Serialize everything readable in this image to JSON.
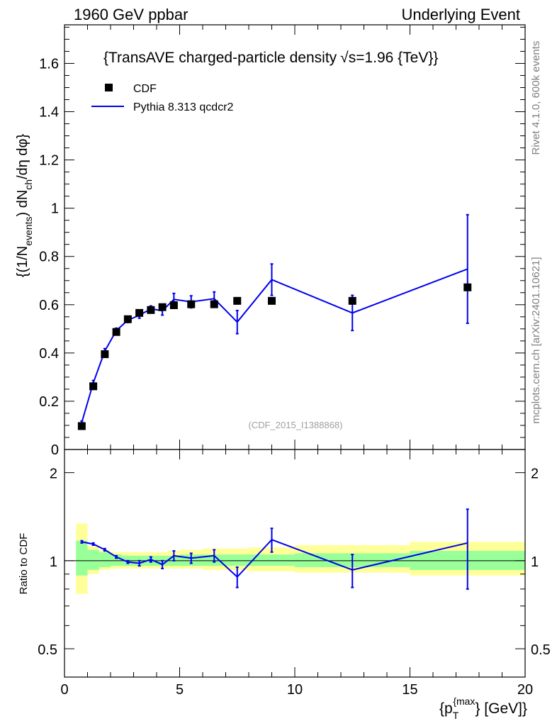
{
  "header": {
    "left": "1960 GeV ppbar",
    "right": "Underlying Event"
  },
  "plot_title": "{TransAVE charged-particle density",
  "plot_title_sqrt": "√s=1.96 {TeV}}",
  "side_labels": {
    "rivet": "Rivet 4.1.0,  600k events",
    "mcplots": "mcplots.cern.ch [arXiv:2401.10621]"
  },
  "watermark": "(CDF_2015_I1388868)",
  "legend": [
    {
      "label": "CDF",
      "marker": "square",
      "color": "#000000"
    },
    {
      "label": "Pythia 8.313 qcdcr2",
      "marker": "line",
      "color": "#0000ee"
    }
  ],
  "colors": {
    "mc": "#0000ee",
    "data": "#000000",
    "band_inner": "#99ff99",
    "band_outer": "#ffff99"
  },
  "chart_data": [
    {
      "type": "scatter",
      "panel": "main",
      "ylabel": "{(1/N_events) dN_ch/dη dφ}",
      "ylabel_parts": {
        "a": "{(1/N",
        "sub1": "events",
        "b": ") dN",
        "sub2": "ch",
        "c": "/dη  dφ}"
      },
      "xlim": [
        0,
        20
      ],
      "ylim": [
        0,
        1.76
      ],
      "yticks": [
        0,
        0.2,
        0.4,
        0.6,
        0.8,
        1,
        1.2,
        1.4,
        1.6
      ],
      "ytick_labels": [
        "0",
        "0.2",
        "0.4",
        "0.6",
        "0.8",
        "1",
        "1.2",
        "1.4",
        "1.6"
      ],
      "series": [
        {
          "name": "CDF",
          "x": [
            0.75,
            1.25,
            1.75,
            2.25,
            2.75,
            3.25,
            3.75,
            4.25,
            4.75,
            5.5,
            6.5,
            7.5,
            9.0,
            12.5,
            17.5
          ],
          "y": [
            0.097,
            0.262,
            0.395,
            0.487,
            0.54,
            0.566,
            0.578,
            0.59,
            0.598,
            0.602,
            0.602,
            0.616,
            0.616,
            0.616,
            0.672
          ]
        },
        {
          "name": "Pythia 8.313 qcdcr2",
          "x": [
            0.75,
            1.25,
            1.75,
            2.25,
            2.75,
            3.25,
            3.75,
            4.25,
            4.75,
            5.5,
            6.5,
            7.5,
            9.0,
            12.5,
            17.5
          ],
          "y": [
            0.112,
            0.276,
            0.408,
            0.493,
            0.536,
            0.556,
            0.583,
            0.575,
            0.622,
            0.612,
            0.625,
            0.528,
            0.704,
            0.566,
            0.748
          ],
          "yerr": [
            0.006,
            0.01,
            0.01,
            0.01,
            0.01,
            0.012,
            0.012,
            0.018,
            0.025,
            0.025,
            0.028,
            0.048,
            0.065,
            0.073,
            0.225
          ]
        }
      ]
    },
    {
      "type": "line",
      "panel": "ratio",
      "ylabel": "Ratio to CDF",
      "xlabel": "{p_T^{max}} [GeV]",
      "xlabel_parts": {
        "a": "{p",
        "sub": "T",
        "sup": "{max",
        "b": "} [GeV]}"
      },
      "xlim": [
        0,
        20
      ],
      "ylim": [
        0.4,
        2.4
      ],
      "yscale": "log",
      "xticks": [
        0,
        5,
        10,
        15,
        20
      ],
      "xtick_labels": [
        "0",
        "5",
        "10",
        "15",
        "20"
      ],
      "yticks_labeled": [
        0.5,
        1,
        2
      ],
      "ytick_labels": [
        "0.5",
        "1",
        "2"
      ],
      "band_edges": [
        0.5,
        1.0,
        1.5,
        2.0,
        2.5,
        3.0,
        3.5,
        4.0,
        4.5,
        5.0,
        6.0,
        7.0,
        8.0,
        10.0,
        15.0,
        20.0
      ],
      "band_inner": [
        [
          0.89,
          1.17
        ],
        [
          0.93,
          1.09
        ],
        [
          0.95,
          1.07
        ],
        [
          0.96,
          1.05
        ],
        [
          0.96,
          1.04
        ],
        [
          0.96,
          1.04
        ],
        [
          0.96,
          1.04
        ],
        [
          0.96,
          1.04
        ],
        [
          0.96,
          1.04
        ],
        [
          0.96,
          1.05
        ],
        [
          0.96,
          1.05
        ],
        [
          0.96,
          1.05
        ],
        [
          0.96,
          1.05
        ],
        [
          0.95,
          1.06
        ],
        [
          0.93,
          1.08
        ]
      ],
      "band_outer": [
        [
          0.77,
          1.34
        ],
        [
          0.9,
          1.12
        ],
        [
          0.93,
          1.09
        ],
        [
          0.94,
          1.07
        ],
        [
          0.94,
          1.07
        ],
        [
          0.94,
          1.07
        ],
        [
          0.94,
          1.07
        ],
        [
          0.94,
          1.07
        ],
        [
          0.94,
          1.08
        ],
        [
          0.94,
          1.09
        ],
        [
          0.93,
          1.1
        ],
        [
          0.93,
          1.1
        ],
        [
          0.92,
          1.11
        ],
        [
          0.91,
          1.13
        ],
        [
          0.89,
          1.16
        ]
      ],
      "x": [
        0.75,
        1.25,
        1.75,
        2.25,
        2.75,
        3.25,
        3.75,
        4.25,
        4.75,
        5.5,
        6.5,
        7.5,
        9.0,
        12.5,
        17.5
      ],
      "y": [
        1.16,
        1.14,
        1.09,
        1.03,
        0.99,
        0.98,
        1.01,
        0.97,
        1.04,
        1.02,
        1.04,
        0.88,
        1.18,
        0.93,
        1.15
      ],
      "yerr": [
        0.01,
        0.01,
        0.01,
        0.01,
        0.01,
        0.02,
        0.02,
        0.03,
        0.04,
        0.04,
        0.05,
        0.07,
        0.11,
        0.12,
        0.35
      ]
    }
  ]
}
